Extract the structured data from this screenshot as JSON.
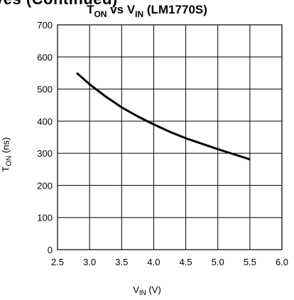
{
  "page": {
    "cropped_heading": "ves (Continued)"
  },
  "chart_data": {
    "type": "line",
    "title": {
      "main": "T",
      "main_sub": "ON",
      "mid": " vs V",
      "mid_sub": "IN",
      "tail": " (LM1770S)"
    },
    "xlabel": {
      "main": "V",
      "sub": "IN",
      "unit": " (V)"
    },
    "ylabel": {
      "main": "T",
      "sub": "ON",
      "unit": " (ns)"
    },
    "xlim": [
      2.5,
      6.0
    ],
    "ylim": [
      0,
      700
    ],
    "x_ticks": [
      2.5,
      3.0,
      3.5,
      4.0,
      4.5,
      5.0,
      5.5,
      6.0
    ],
    "y_ticks": [
      0,
      100,
      200,
      300,
      400,
      500,
      600,
      700
    ],
    "grid": true,
    "series": [
      {
        "color": "#000000",
        "x": [
          2.8,
          3.0,
          3.25,
          3.5,
          3.75,
          4.0,
          4.25,
          4.5,
          4.75,
          5.0,
          5.25,
          5.5
        ],
        "y": [
          550,
          515,
          477,
          443,
          415,
          390,
          367,
          347,
          330,
          313,
          297,
          281
        ]
      }
    ]
  }
}
